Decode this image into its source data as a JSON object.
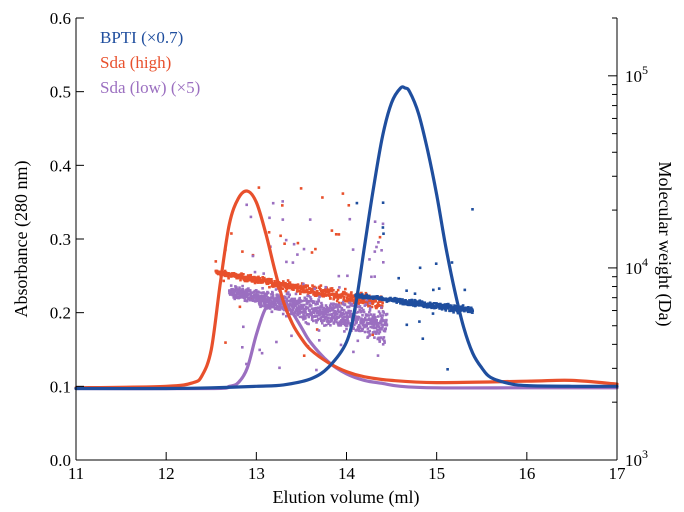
{
  "chart_data": {
    "type": "line",
    "xlabel": "Elution volume (ml)",
    "ylabel_left": "Absorbance (280 nm)",
    "ylabel_right": "Molecular weight (Da)",
    "xlim": [
      11,
      17
    ],
    "ylim_left": [
      0.0,
      0.6
    ],
    "ylim_right_log": [
      1000,
      200000
    ],
    "x_ticks": [
      "11",
      "12",
      "13",
      "14",
      "15",
      "16",
      "17"
    ],
    "y_ticks_left": [
      "0.0",
      "0.1",
      "0.2",
      "0.3",
      "0.4",
      "0.5",
      "0.6"
    ],
    "y_ticks_right": [
      {
        "base": "10",
        "exp": "3",
        "value": 1000
      },
      {
        "base": "10",
        "exp": "4",
        "value": 10000
      },
      {
        "base": "10",
        "exp": "5",
        "value": 100000
      }
    ],
    "legend_position": "top-left",
    "series": [
      {
        "name": "BPTI (×0.7)",
        "color": "#1f4e9e",
        "axis": "left",
        "x": [
          11.0,
          12.0,
          12.5,
          13.0,
          13.3,
          13.6,
          13.8,
          14.0,
          14.1,
          14.2,
          14.3,
          14.4,
          14.5,
          14.6,
          14.65,
          14.7,
          14.8,
          14.9,
          15.0,
          15.1,
          15.2,
          15.3,
          15.4,
          15.5,
          15.6,
          15.8,
          16.0,
          16.5,
          17.0
        ],
        "values": [
          0.097,
          0.097,
          0.098,
          0.1,
          0.102,
          0.11,
          0.126,
          0.16,
          0.21,
          0.29,
          0.37,
          0.44,
          0.485,
          0.505,
          0.505,
          0.5,
          0.47,
          0.42,
          0.36,
          0.29,
          0.23,
          0.18,
          0.145,
          0.125,
          0.112,
          0.104,
          0.101,
          0.1,
          0.1
        ]
      },
      {
        "name": "Sda (high)",
        "color": "#e8502c",
        "axis": "left",
        "x": [
          11.0,
          12.0,
          12.3,
          12.4,
          12.5,
          12.6,
          12.7,
          12.8,
          12.9,
          13.0,
          13.1,
          13.2,
          13.3,
          13.4,
          13.5,
          13.6,
          13.8,
          14.0,
          14.2,
          14.5,
          15.0,
          16.0,
          16.5,
          17.0
        ],
        "values": [
          0.098,
          0.1,
          0.105,
          0.115,
          0.15,
          0.24,
          0.32,
          0.355,
          0.365,
          0.35,
          0.31,
          0.26,
          0.215,
          0.185,
          0.165,
          0.15,
          0.132,
          0.12,
          0.113,
          0.108,
          0.105,
          0.107,
          0.108,
          0.103
        ]
      },
      {
        "name": "Sda (low) (×5)",
        "color": "#9b6fc0",
        "axis": "left",
        "x": [
          11.0,
          12.5,
          12.7,
          12.8,
          12.9,
          13.0,
          13.1,
          13.2,
          13.25,
          13.3,
          13.4,
          13.5,
          13.6,
          13.8,
          14.0,
          14.2,
          14.4,
          14.6,
          15.0,
          16.0,
          17.0
        ],
        "values": [
          0.097,
          0.097,
          0.1,
          0.105,
          0.125,
          0.17,
          0.205,
          0.215,
          0.218,
          0.215,
          0.2,
          0.18,
          0.16,
          0.133,
          0.117,
          0.108,
          0.104,
          0.1,
          0.098,
          0.098,
          0.098
        ]
      },
      {
        "name": "Sda (high) molecular weight",
        "color": "#e8502c",
        "axis": "right",
        "marker": "square",
        "x_range": [
          12.55,
          14.4
        ],
        "mw_trend_start": 9500,
        "mw_trend_end": 6500
      },
      {
        "name": "Sda (low) molecular weight",
        "color": "#9b6fc0",
        "axis": "right",
        "marker": "square",
        "x_range": [
          12.7,
          14.45
        ],
        "mw_trend_start": 7500,
        "mw_trend_end": 5000
      },
      {
        "name": "BPTI molecular weight",
        "color": "#1f4e9e",
        "axis": "right",
        "marker": "square",
        "x_range": [
          14.1,
          15.4
        ],
        "mw_trend_start": 7200,
        "mw_trend_end": 6000
      }
    ]
  }
}
